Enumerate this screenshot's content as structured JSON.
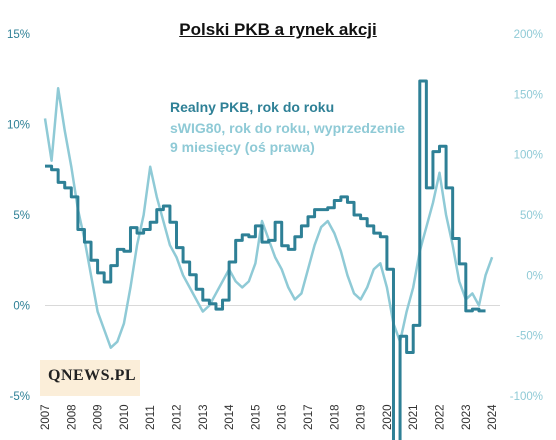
{
  "chart_data": {
    "type": "line",
    "title": "Polski PKB a rynek akcji",
    "logo_text": "QNEWS.PL",
    "colors": {
      "gdp": "#2e8096",
      "swig": "#8fcad6",
      "left_axis": "#2e8096",
      "right_axis": "#8fcad6"
    },
    "left_axis": {
      "ticks": [
        "-5%",
        "0%",
        "5%",
        "10%",
        "15%"
      ],
      "values": [
        -5,
        0,
        5,
        10,
        15
      ],
      "ylim": [
        -5,
        15
      ]
    },
    "right_axis": {
      "ticks": [
        "-100%",
        "-50%",
        "0%",
        "50%",
        "100%",
        "150%",
        "200%"
      ],
      "values": [
        -100,
        -50,
        0,
        50,
        100,
        150,
        200
      ],
      "ylim": [
        -100,
        200
      ]
    },
    "x_axis": {
      "ticks": [
        "2007",
        "2008",
        "2009",
        "2010",
        "2011",
        "2012",
        "2013",
        "2014",
        "2015",
        "2016",
        "2017",
        "2018",
        "2019",
        "2020",
        "2021",
        "2022",
        "2023",
        "2024"
      ],
      "xlim": [
        2007,
        2024.3
      ]
    },
    "series": [
      {
        "name": "Realny PKB, rok do roku",
        "axis": "left",
        "x": [
          2007.0,
          2007.25,
          2007.5,
          2007.75,
          2008.0,
          2008.25,
          2008.5,
          2008.75,
          2009.0,
          2009.25,
          2009.5,
          2009.75,
          2010.0,
          2010.25,
          2010.5,
          2010.75,
          2011.0,
          2011.25,
          2011.5,
          2011.75,
          2012.0,
          2012.25,
          2012.5,
          2012.75,
          2013.0,
          2013.25,
          2013.5,
          2013.75,
          2014.0,
          2014.25,
          2014.5,
          2014.75,
          2015.0,
          2015.25,
          2015.5,
          2015.75,
          2016.0,
          2016.25,
          2016.5,
          2016.75,
          2017.0,
          2017.25,
          2017.5,
          2017.75,
          2018.0,
          2018.25,
          2018.5,
          2018.75,
          2019.0,
          2019.25,
          2019.5,
          2019.75,
          2020.0,
          2020.25,
          2020.5,
          2020.75,
          2021.0,
          2021.25,
          2021.5,
          2021.75,
          2022.0,
          2022.25,
          2022.5,
          2022.75,
          2023.0,
          2023.25,
          2023.5
        ],
        "values": [
          7.7,
          7.5,
          6.8,
          6.5,
          6.0,
          4.2,
          3.5,
          2.5,
          1.8,
          1.3,
          2.2,
          3.1,
          3.0,
          4.3,
          4.0,
          4.2,
          4.6,
          5.3,
          5.5,
          4.6,
          3.2,
          2.4,
          1.7,
          0.9,
          0.3,
          0.1,
          -0.2,
          0.3,
          2.4,
          3.6,
          3.9,
          3.8,
          4.4,
          3.5,
          3.6,
          4.6,
          3.3,
          3.1,
          3.8,
          4.4,
          4.9,
          5.3,
          5.3,
          5.4,
          5.8,
          6.0,
          5.7,
          5.0,
          4.8,
          4.4,
          4.0,
          3.8,
          2.0,
          -8.5,
          -1.7,
          -2.6,
          -1.1,
          12.4,
          6.5,
          8.5,
          8.8,
          6.5,
          3.7,
          2.3,
          -0.3,
          -0.2,
          -0.3
        ]
      },
      {
        "name": "sWIG80, rok do roku, wyprzedzenie 9 miesięcy (oś prawa)",
        "axis": "right",
        "x": [
          2007.0,
          2007.25,
          2007.5,
          2007.75,
          2008.0,
          2008.25,
          2008.5,
          2008.75,
          2009.0,
          2009.25,
          2009.5,
          2009.75,
          2010.0,
          2010.25,
          2010.5,
          2010.75,
          2011.0,
          2011.25,
          2011.5,
          2011.75,
          2012.0,
          2012.25,
          2012.5,
          2012.75,
          2013.0,
          2013.25,
          2013.5,
          2013.75,
          2014.0,
          2014.25,
          2014.5,
          2014.75,
          2015.0,
          2015.25,
          2015.5,
          2015.75,
          2016.0,
          2016.25,
          2016.5,
          2016.75,
          2017.0,
          2017.25,
          2017.5,
          2017.75,
          2018.0,
          2018.25,
          2018.5,
          2018.75,
          2019.0,
          2019.25,
          2019.5,
          2019.75,
          2020.0,
          2020.25,
          2020.5,
          2020.75,
          2021.0,
          2021.25,
          2021.5,
          2021.75,
          2022.0,
          2022.25,
          2022.5,
          2022.75,
          2023.0,
          2023.25,
          2023.5,
          2023.75,
          2024.0
        ],
        "values": [
          130,
          95,
          155,
          120,
          90,
          55,
          30,
          0,
          -30,
          -45,
          -60,
          -55,
          -40,
          -10,
          25,
          50,
          90,
          65,
          45,
          25,
          15,
          0,
          -10,
          -20,
          -30,
          -25,
          -15,
          -5,
          5,
          -5,
          -10,
          -5,
          10,
          45,
          30,
          15,
          5,
          -10,
          -20,
          -15,
          5,
          25,
          40,
          45,
          35,
          20,
          0,
          -15,
          -20,
          -10,
          5,
          10,
          -10,
          -40,
          -55,
          -30,
          -10,
          20,
          40,
          60,
          85,
          50,
          25,
          -5,
          -20,
          -15,
          -25,
          0,
          15
        ]
      }
    ]
  }
}
